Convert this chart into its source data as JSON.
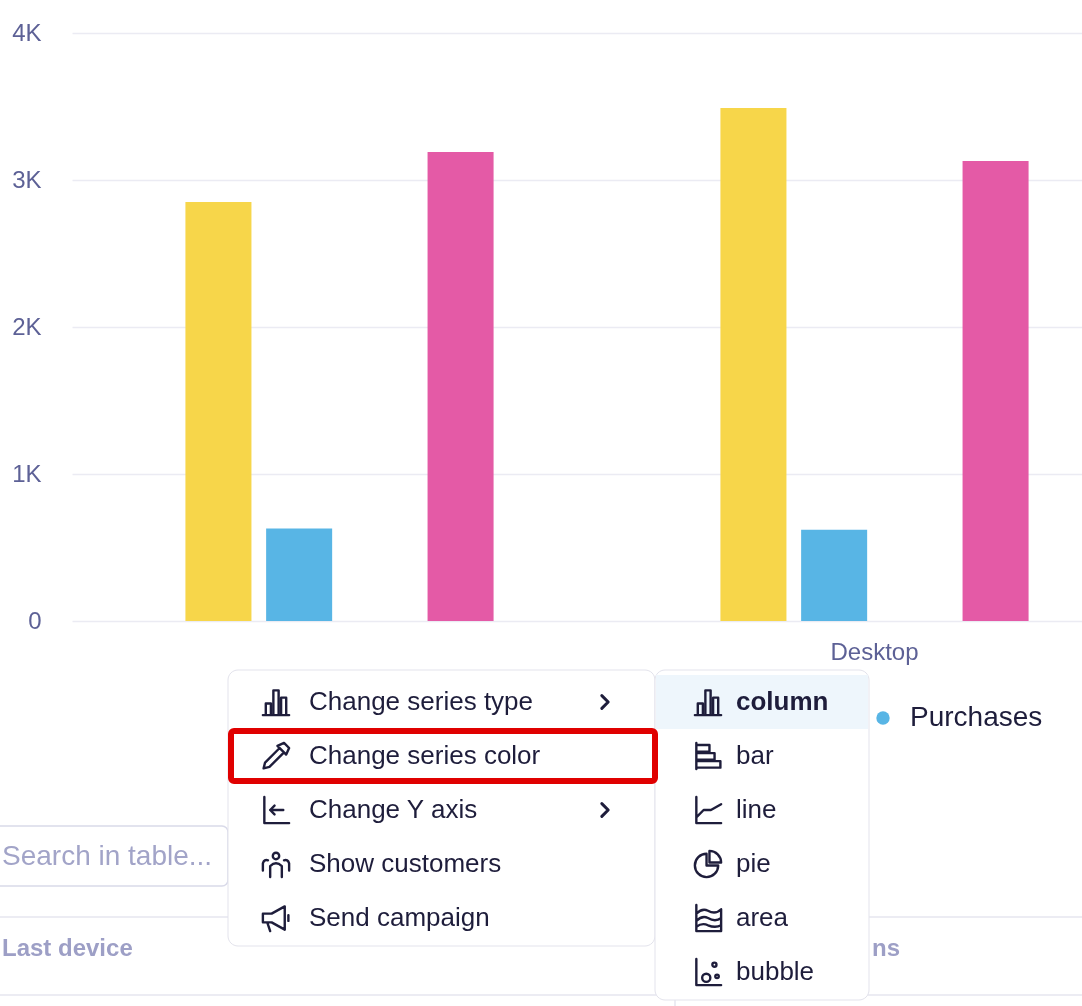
{
  "chart_data": {
    "type": "bar",
    "categories": [
      null,
      "Desktop"
    ],
    "series": [
      {
        "color": "#f7d64a",
        "values": [
          2850,
          3490
        ]
      },
      {
        "name": "Purchases",
        "color": "#58b5e5",
        "values": [
          630,
          620
        ]
      },
      {
        "values": [
          null,
          null
        ]
      },
      {
        "color": "#e45aa6",
        "values": [
          3190,
          3130
        ]
      }
    ],
    "ylim": [
      0,
      4000
    ],
    "yticks": [
      0,
      {
        "value": 1000,
        "label": "1K"
      },
      {
        "value": 2000,
        "label": "2K"
      },
      {
        "value": 3000,
        "label": "3K"
      },
      {
        "value": 4000,
        "label": "4K"
      }
    ],
    "grid": "y",
    "legend": "bottom",
    "annotations": [
      "Change series type",
      "Change series color",
      "Change Y axis",
      "Show customers",
      "Send campaign",
      "column",
      "bar",
      "line",
      "pie",
      "area",
      "bubble",
      "Search in table...",
      "Last device",
      "ns"
    ]
  }
}
